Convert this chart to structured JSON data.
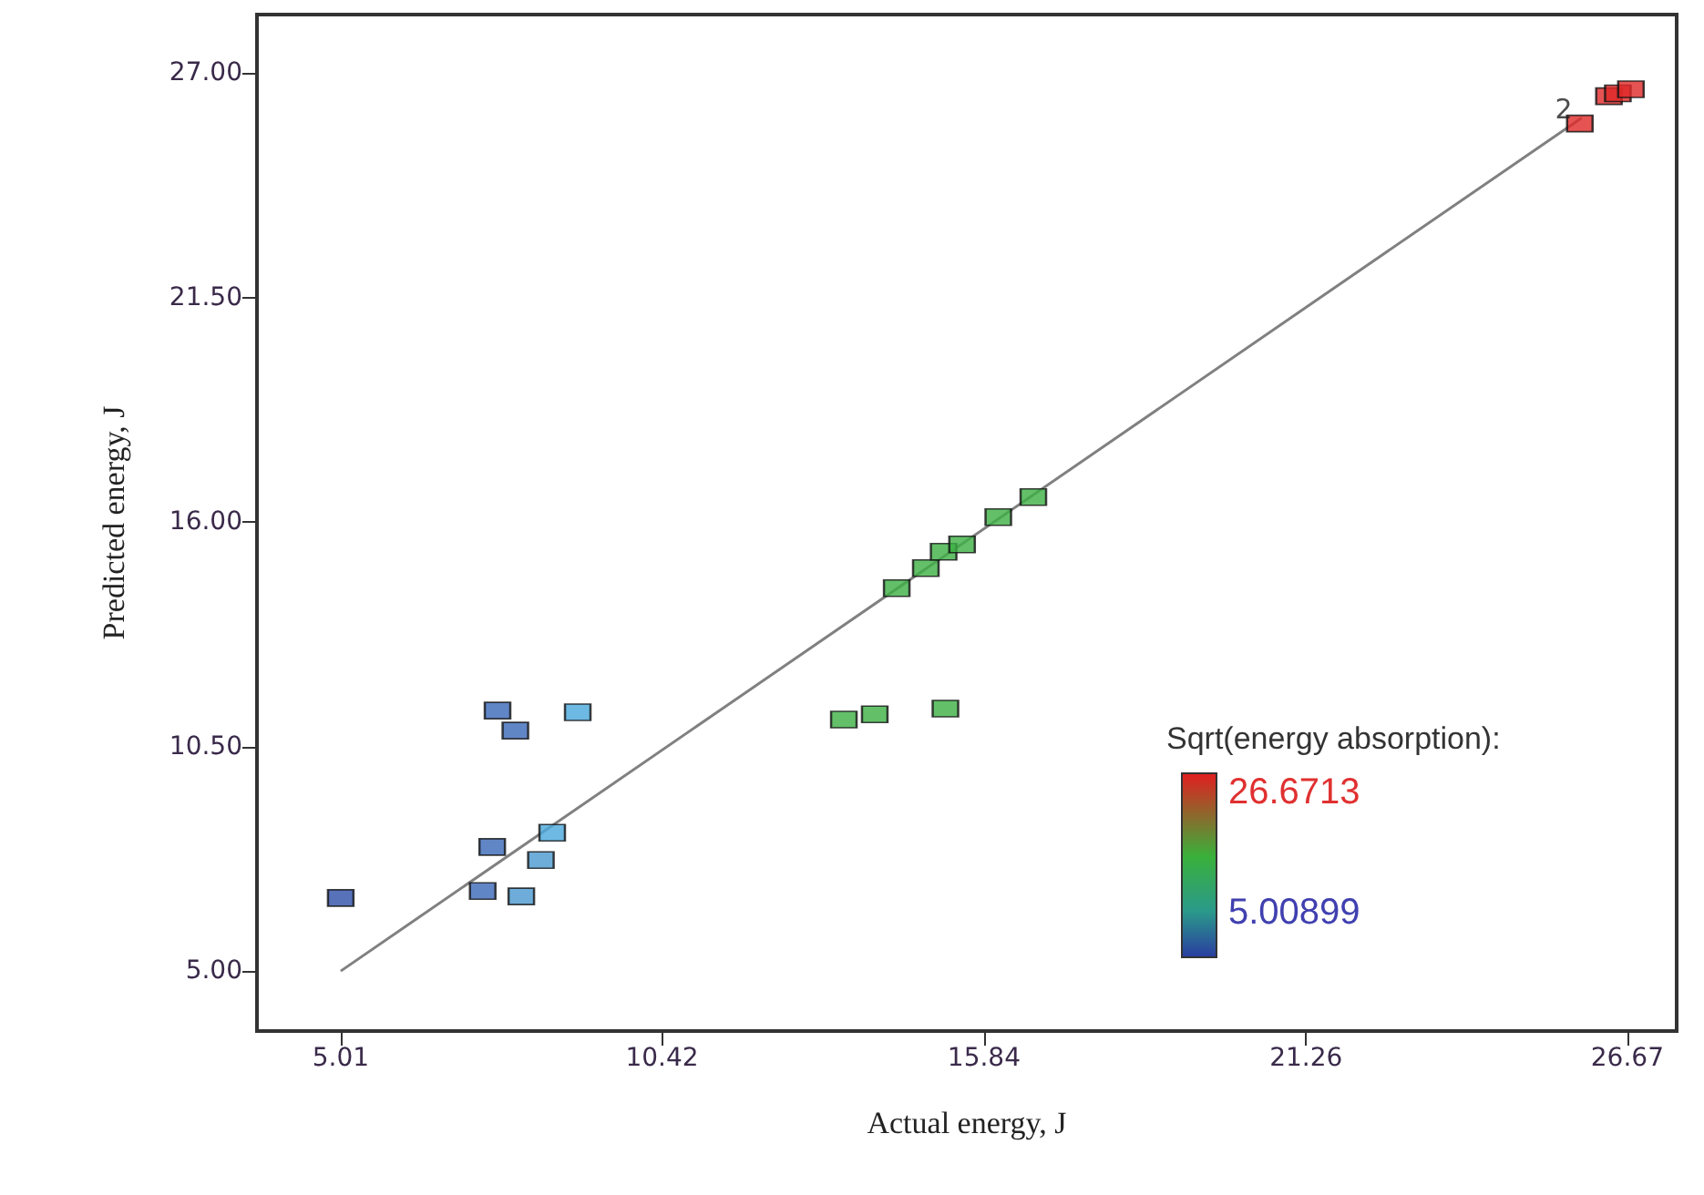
{
  "chart_data": {
    "type": "scatter",
    "xlabel": "Actual energy, J",
    "ylabel": "Predicted energy, J",
    "clabel": "Sqrt(energy absorption):",
    "xlim": [
      3.6,
      27.5
    ],
    "ylim": [
      3.53,
      28.43
    ],
    "xticks": [
      5.01,
      10.42,
      15.84,
      21.26,
      26.67
    ],
    "yticks": [
      {
        "value": 5,
        "label": "5.00"
      },
      {
        "value": 10.5,
        "label": "10.50"
      },
      {
        "value": 16,
        "label": "16.00"
      },
      {
        "value": 21.5,
        "label": "21.50"
      },
      {
        "value": 27,
        "label": "27.00"
      }
    ],
    "grid": false,
    "annotations": [
      {
        "text": "2",
        "x": 25.9,
        "y": 26.1
      },
      "26.6713",
      "5.00899"
    ],
    "series": [
      {
        "marker": "square",
        "x": [
          5.01,
          7.65,
          7.95,
          9.0,
          7.56,
          8.57,
          8.38,
          7.4,
          8.05,
          14.37,
          14.86,
          15.16,
          15.47,
          16.08,
          16.67,
          13.48,
          14.0,
          15.19,
          25.87,
          26.36,
          26.51,
          26.73
        ],
        "values": [
          6.79,
          11.38,
          10.89,
          11.34,
          8.04,
          8.39,
          7.72,
          6.96,
          6.83,
          14.38,
          14.87,
          15.27,
          15.45,
          16.12,
          16.61,
          11.16,
          11.29,
          11.43,
          25.76,
          26.43,
          26.5,
          26.6
        ],
        "colors": [
          "#2e4fa8",
          "#3a68b8",
          "#3a68b8",
          "#48a8dc",
          "#3a68b8",
          "#48a8dc",
          "#4a98d0",
          "#3a68b8",
          "#4a98d0",
          "#3cb043",
          "#3cb043",
          "#3cb043",
          "#3cb043",
          "#3cb043",
          "#3cb043",
          "#3cb043",
          "#3cb043",
          "#3cb043",
          "#e02828",
          "#e02828",
          "#e02828",
          "#e02828"
        ]
      },
      {
        "type": "line",
        "color": "#808080",
        "x": [
          5.01,
          25.9
        ],
        "values": [
          5.0,
          25.9
        ]
      }
    ]
  }
}
